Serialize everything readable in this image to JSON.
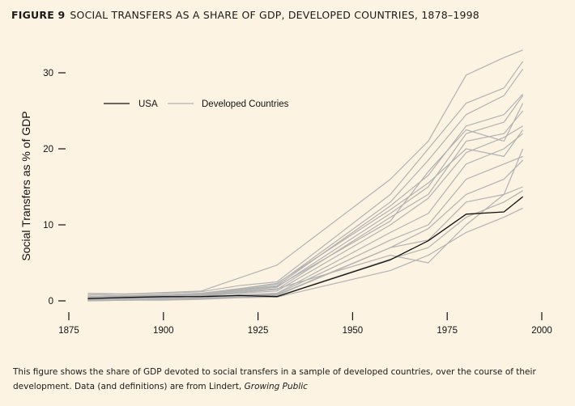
{
  "figure": {
    "label": "FIGURE 9",
    "title": "SOCIAL TRANSFERS AS A SHARE OF GDP, DEVELOPED COUNTRIES, 1878–1998"
  },
  "caption": {
    "text": "This figure shows the share of GDP devoted to social transfers in a sample of developed countries, over the course of their development. Data (and definitions) are from Lindert, ",
    "source_title": "Growing Public"
  },
  "colors": {
    "background": "#fdf3e3",
    "usa": "#111111",
    "developed": "#b2b2b2",
    "axis": "#111111"
  },
  "chart_data": {
    "type": "line",
    "title": "SOCIAL TRANSFERS AS A SHARE OF GDP, DEVELOPED COUNTRIES, 1878–1998",
    "xlabel": "",
    "ylabel": "Social Transfers as % of GDP",
    "xlim": [
      1875,
      2000
    ],
    "ylim": [
      0,
      33
    ],
    "xticks": [
      1875,
      1900,
      1925,
      1950,
      1975,
      2000
    ],
    "yticks": [
      0,
      10,
      20,
      30
    ],
    "grid": false,
    "legend": {
      "position": "top-left",
      "entries": [
        {
          "name": "USA",
          "color": "#111111"
        },
        {
          "name": "Developed Countries",
          "color": "#b2b2b2"
        }
      ]
    },
    "x": [
      1880,
      1890,
      1900,
      1910,
      1920,
      1930,
      1960,
      1970,
      1980,
      1990,
      1995
    ],
    "series": [
      {
        "name": "USA",
        "group": "usa",
        "values": [
          0.3,
          0.45,
          0.55,
          0.56,
          0.7,
          0.56,
          5.4,
          7.9,
          11.4,
          11.7,
          13.7
        ]
      },
      {
        "name": "Developed Countries",
        "group": "developed",
        "values": [
          1.0,
          0.9,
          1.1,
          1.3,
          3.0,
          4.7,
          16.0,
          21.0,
          29.7,
          32.0,
          33.0
        ]
      },
      {
        "name": "Developed Countries",
        "group": "developed",
        "values": [
          0.8,
          0.9,
          1.0,
          1.2,
          2.0,
          2.5,
          14.0,
          20.0,
          26.0,
          28.0,
          31.5
        ]
      },
      {
        "name": "Developed Countries",
        "group": "developed",
        "values": [
          0.6,
          0.7,
          0.8,
          1.0,
          1.6,
          2.2,
          13.0,
          18.5,
          24.5,
          27.0,
          30.5
        ]
      },
      {
        "name": "Developed Countries",
        "group": "developed",
        "values": [
          0.5,
          0.6,
          0.7,
          0.9,
          1.5,
          2.0,
          12.5,
          16.5,
          23.0,
          24.5,
          27.2
        ]
      },
      {
        "name": "Developed Countries",
        "group": "developed",
        "values": [
          0.4,
          0.5,
          0.7,
          0.8,
          1.3,
          1.8,
          11.5,
          15.0,
          22.0,
          23.5,
          27.0
        ]
      },
      {
        "name": "Developed Countries",
        "group": "developed",
        "values": [
          0.3,
          0.4,
          0.6,
          0.7,
          1.1,
          1.5,
          11.0,
          14.0,
          21.0,
          22.0,
          25.0
        ]
      },
      {
        "name": "Developed Countries",
        "group": "developed",
        "values": [
          0.2,
          0.3,
          0.4,
          0.6,
          1.0,
          1.3,
          10.0,
          13.5,
          19.5,
          21.5,
          23.0
        ]
      },
      {
        "name": "Developed Countries",
        "group": "developed",
        "values": [
          0.1,
          0.2,
          0.3,
          0.4,
          0.8,
          1.0,
          9.0,
          11.5,
          18.0,
          20.0,
          22.0
        ]
      },
      {
        "name": "Developed Countries",
        "group": "developed",
        "values": [
          0.1,
          0.2,
          0.3,
          0.4,
          0.7,
          0.9,
          8.0,
          10.0,
          16.0,
          18.0,
          19.0
        ]
      },
      {
        "name": "Developed Countries",
        "group": "developed",
        "values": [
          0.0,
          0.1,
          0.2,
          0.3,
          0.6,
          0.8,
          7.0,
          9.5,
          14.0,
          16.0,
          18.5
        ]
      },
      {
        "name": "Developed Countries",
        "group": "developed",
        "values": [
          0.2,
          0.2,
          0.3,
          0.4,
          0.6,
          0.7,
          7.0,
          8.0,
          13.0,
          14.0,
          15.0
        ]
      },
      {
        "name": "Developed Countries",
        "group": "developed",
        "values": [
          0.1,
          0.1,
          0.2,
          0.3,
          0.5,
          0.6,
          5.5,
          7.0,
          11.0,
          13.0,
          14.5
        ]
      },
      {
        "name": "Developed Countries",
        "group": "developed",
        "values": [
          0.0,
          0.1,
          0.1,
          0.2,
          0.4,
          0.5,
          4.0,
          6.0,
          9.0,
          11.0,
          12.2
        ]
      },
      {
        "name": "Developed Countries",
        "group": "developed",
        "values": [
          0.6,
          0.7,
          0.8,
          1.0,
          1.6,
          2.3,
          12.0,
          15.5,
          20.0,
          19.0,
          22.5
        ]
      },
      {
        "name": "Developed Countries",
        "group": "developed",
        "values": [
          0.3,
          0.4,
          0.5,
          0.7,
          1.2,
          1.6,
          6.0,
          5.0,
          10.0,
          14.0,
          20.0
        ]
      },
      {
        "name": "Developed Countries",
        "group": "developed",
        "values": [
          0.4,
          0.5,
          0.6,
          0.8,
          1.4,
          1.9,
          10.5,
          17.0,
          22.5,
          21.0,
          26.0
        ]
      }
    ]
  }
}
